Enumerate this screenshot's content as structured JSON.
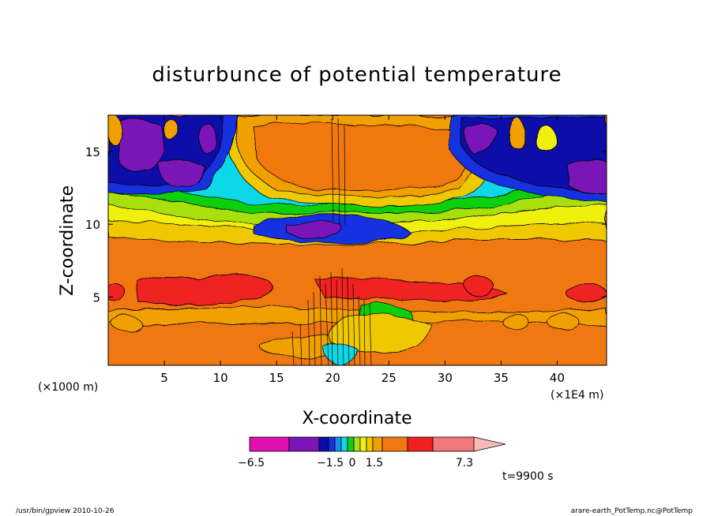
{
  "chart_data": {
    "type": "heatmap",
    "title": "disturbunce of potential temperature",
    "xlabel": "X-coordinate",
    "ylabel": "Z-coordinate",
    "x_unit_label": "(×1E4 m)",
    "y_unit_label": "(×1000 m)",
    "x_ticks": [
      "5",
      "10",
      "15",
      "20",
      "25",
      "30",
      "35",
      "40"
    ],
    "x_tick_values": [
      5,
      10,
      15,
      20,
      25,
      30,
      35,
      40
    ],
    "y_ticks": [
      "5",
      "10",
      "15"
    ],
    "y_tick_values": [
      5,
      10,
      15
    ],
    "xlim": [
      0,
      44.4
    ],
    "ylim": [
      0.3,
      17.5
    ],
    "colorbar": {
      "labels": [
        "−6.5",
        "−1.5",
        "0",
        "1.5",
        "7.3"
      ],
      "colors": [
        "#e010b0",
        "#7a16b8",
        "#0c0caa",
        "#1830e0",
        "#1890f0",
        "#10d8e8",
        "#10d010",
        "#a8e010",
        "#f0f010",
        "#f0c800",
        "#f0a000",
        "#f07810",
        "#f02020",
        "#f07878",
        "#f8b8b8"
      ]
    },
    "annotation_time": "t=9900 s",
    "footer_left": "/usr/bin/gpview   2010-10-26",
    "footer_right": "arare-earth_PotTemp.nc@PotTemp"
  }
}
